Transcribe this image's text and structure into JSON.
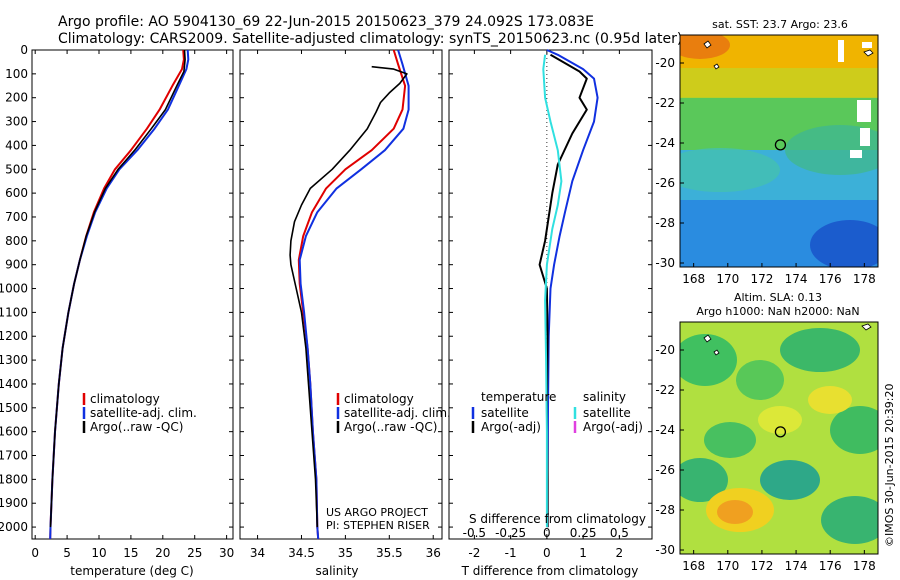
{
  "header": {
    "line1": "Argo profile: AO 5904130_69 22-Jun-2015 20150623_379 24.092S 173.083E",
    "line2": "Climatology: CARS2009. Satellite-adjusted climatology: synTS_20150623.nc (0.95d later)"
  },
  "side_caption": "©IMOS 30-Jun-2015 20:39:20",
  "colors": {
    "climatology": "#e00000",
    "satellite": "#1030e0",
    "argo": "#000000",
    "salinity_satellite": "#30e0e0",
    "salinity_argo": "#e040e0"
  },
  "chart_data": [
    {
      "id": "temperature",
      "type": "line",
      "xlabel": "temperature (deg C)",
      "xlim": [
        -0.5,
        31
      ],
      "xticks": [
        "0",
        "5",
        "10",
        "15",
        "20",
        "25",
        "30"
      ],
      "xtick_values": [
        0,
        5,
        10,
        15,
        20,
        25,
        30
      ],
      "ylim": [
        2050,
        0
      ],
      "yticks": [
        "0",
        "100",
        "200",
        "300",
        "400",
        "500",
        "600",
        "700",
        "800",
        "900",
        "1000",
        "1100",
        "1200",
        "1300",
        "1400",
        "1500",
        "1600",
        "1700",
        "1800",
        "1900",
        "2000"
      ],
      "ytick_values": [
        0,
        100,
        200,
        300,
        400,
        500,
        600,
        700,
        800,
        900,
        1000,
        1100,
        1200,
        1300,
        1400,
        1500,
        1600,
        1700,
        1800,
        1900,
        2000
      ],
      "legend": [
        "climatology",
        "satellite-adj. clim.",
        "Argo(..raw -QC)"
      ],
      "series": [
        {
          "name": "climatology",
          "color": "#e00000",
          "points": [
            [
              23.2,
              0
            ],
            [
              23.3,
              40
            ],
            [
              23.0,
              80
            ],
            [
              21.5,
              150
            ],
            [
              19.5,
              250
            ],
            [
              17.5,
              330
            ],
            [
              15.0,
              420
            ],
            [
              12.5,
              500
            ],
            [
              10.8,
              580
            ],
            [
              9.2,
              680
            ],
            [
              8.0,
              780
            ],
            [
              7.0,
              880
            ],
            [
              6.1,
              980
            ],
            [
              5.2,
              1100
            ],
            [
              4.3,
              1250
            ],
            [
              3.7,
              1400
            ],
            [
              3.1,
              1600
            ],
            [
              2.7,
              1800
            ],
            [
              2.4,
              2000
            ],
            [
              2.35,
              2050
            ]
          ]
        },
        {
          "name": "satellite-adj. clim.",
          "color": "#1030e0",
          "points": [
            [
              23.9,
              0
            ],
            [
              24.0,
              40
            ],
            [
              23.7,
              80
            ],
            [
              22.5,
              150
            ],
            [
              20.8,
              250
            ],
            [
              18.7,
              330
            ],
            [
              16.0,
              420
            ],
            [
              13.2,
              500
            ],
            [
              11.2,
              580
            ],
            [
              9.4,
              680
            ],
            [
              8.1,
              780
            ],
            [
              7.0,
              880
            ],
            [
              6.1,
              980
            ],
            [
              5.2,
              1100
            ],
            [
              4.3,
              1250
            ],
            [
              3.7,
              1400
            ],
            [
              3.1,
              1600
            ],
            [
              2.7,
              1800
            ],
            [
              2.4,
              2000
            ],
            [
              2.35,
              2050
            ]
          ]
        },
        {
          "name": "Argo(..raw -QC)",
          "color": "#000000",
          "points": [
            [
              23.4,
              0
            ],
            [
              23.5,
              40
            ],
            [
              23.3,
              90
            ],
            [
              22.2,
              150
            ],
            [
              20.4,
              250
            ],
            [
              18.2,
              330
            ],
            [
              15.6,
              420
            ],
            [
              13.0,
              500
            ],
            [
              11.0,
              580
            ],
            [
              9.3,
              680
            ],
            [
              8.0,
              780
            ],
            [
              7.0,
              880
            ],
            [
              6.1,
              980
            ],
            [
              5.2,
              1100
            ],
            [
              4.3,
              1250
            ],
            [
              3.7,
              1400
            ],
            [
              3.1,
              1600
            ],
            [
              2.7,
              1800
            ],
            [
              2.4,
              2000
            ]
          ]
        }
      ]
    },
    {
      "id": "salinity",
      "type": "line",
      "xlabel": "salinity",
      "xlim": [
        33.8,
        36.1
      ],
      "xticks": [
        "34",
        "34.5",
        "35",
        "35.5",
        "36"
      ],
      "xtick_values": [
        34,
        34.5,
        35,
        35.5,
        36
      ],
      "ylim": [
        2050,
        0
      ],
      "legend": [
        "climatology",
        "satellite-adj. clim.",
        "Argo(..raw -QC)"
      ],
      "annotations": [
        "US ARGO PROJECT",
        "PI: STEPHEN RISER"
      ],
      "series": [
        {
          "name": "climatology",
          "color": "#e00000",
          "points": [
            [
              35.55,
              0
            ],
            [
              35.6,
              60
            ],
            [
              35.68,
              150
            ],
            [
              35.65,
              250
            ],
            [
              35.55,
              330
            ],
            [
              35.3,
              420
            ],
            [
              35.0,
              500
            ],
            [
              34.78,
              580
            ],
            [
              34.62,
              680
            ],
            [
              34.52,
              780
            ],
            [
              34.47,
              880
            ],
            [
              34.48,
              980
            ],
            [
              34.52,
              1100
            ],
            [
              34.57,
              1250
            ],
            [
              34.6,
              1400
            ],
            [
              34.63,
              1600
            ],
            [
              34.67,
              1800
            ],
            [
              34.68,
              2000
            ],
            [
              34.69,
              2050
            ]
          ]
        },
        {
          "name": "satellite-adj. clim.",
          "color": "#1030e0",
          "points": [
            [
              35.6,
              0
            ],
            [
              35.65,
              60
            ],
            [
              35.72,
              150
            ],
            [
              35.72,
              250
            ],
            [
              35.66,
              330
            ],
            [
              35.45,
              420
            ],
            [
              35.18,
              500
            ],
            [
              34.9,
              580
            ],
            [
              34.68,
              680
            ],
            [
              34.55,
              780
            ],
            [
              34.48,
              880
            ],
            [
              34.49,
              980
            ],
            [
              34.53,
              1100
            ],
            [
              34.57,
              1250
            ],
            [
              34.6,
              1400
            ],
            [
              34.63,
              1600
            ],
            [
              34.67,
              1800
            ],
            [
              34.68,
              2000
            ],
            [
              34.69,
              2050
            ]
          ]
        },
        {
          "name": "Argo(..raw -QC)",
          "color": "#000000",
          "points": [
            [
              35.3,
              70
            ],
            [
              35.55,
              80
            ],
            [
              35.7,
              100
            ],
            [
              35.62,
              140
            ],
            [
              35.5,
              180
            ],
            [
              35.4,
              220
            ],
            [
              35.35,
              260
            ],
            [
              35.25,
              330
            ],
            [
              35.05,
              420
            ],
            [
              34.85,
              500
            ],
            [
              34.6,
              580
            ],
            [
              34.5,
              650
            ],
            [
              34.42,
              720
            ],
            [
              34.38,
              800
            ],
            [
              34.37,
              860
            ],
            [
              34.38,
              900
            ],
            [
              34.44,
              1000
            ],
            [
              34.5,
              1100
            ],
            [
              34.55,
              1250
            ],
            [
              34.58,
              1400
            ],
            [
              34.62,
              1600
            ],
            [
              34.66,
              1800
            ],
            [
              34.68,
              2000
            ]
          ]
        }
      ]
    },
    {
      "id": "differences",
      "type": "line",
      "xlabel": "T difference from climatology",
      "xlim": [
        -2.7,
        2.9
      ],
      "xticks": [
        "-2",
        "-1",
        "0",
        "1",
        "2"
      ],
      "xtick_values": [
        -2,
        -1,
        0,
        1,
        2
      ],
      "top_axis_label": "S difference from climatology",
      "top_xticks": [
        "-0.5",
        "-0.25",
        "0",
        "0.25",
        "0.5"
      ],
      "ylim": [
        2050,
        0
      ],
      "zero_line": true,
      "legend_headers": [
        "temperature",
        "salinity"
      ],
      "legend": [
        "satellite",
        "Argo(-adj)",
        "satellite",
        "Argo(-adj)"
      ],
      "series": [
        {
          "name": "temperature satellite",
          "color": "#1030e0",
          "points": [
            [
              0.0,
              0
            ],
            [
              0.3,
              20
            ],
            [
              1.0,
              80
            ],
            [
              1.3,
              120
            ],
            [
              1.4,
              200
            ],
            [
              1.3,
              300
            ],
            [
              1.0,
              420
            ],
            [
              0.7,
              550
            ],
            [
              0.5,
              680
            ],
            [
              0.35,
              780
            ],
            [
              0.2,
              900
            ],
            [
              0.1,
              1000
            ],
            [
              0.05,
              1200
            ],
            [
              0.03,
              1500
            ],
            [
              0.02,
              1800
            ],
            [
              0.02,
              2000
            ]
          ]
        },
        {
          "name": "temperature Argo(-adj)",
          "color": "#000000",
          "points": [
            [
              0.1,
              20
            ],
            [
              0.9,
              90
            ],
            [
              1.1,
              120
            ],
            [
              0.9,
              200
            ],
            [
              1.1,
              250
            ],
            [
              0.7,
              350
            ],
            [
              0.3,
              480
            ],
            [
              0.15,
              600
            ],
            [
              -0.05,
              800
            ],
            [
              -0.2,
              900
            ],
            [
              0.0,
              1000
            ],
            [
              0.02,
              1200
            ],
            [
              0.0,
              1500
            ],
            [
              0.02,
              1800
            ],
            [
              0.02,
              2000
            ]
          ]
        },
        {
          "name": "salinity satellite",
          "color": "#30e0e0",
          "points": [
            [
              -0.05,
              20
            ],
            [
              -0.1,
              80
            ],
            [
              -0.05,
              200
            ],
            [
              0.1,
              300
            ],
            [
              0.3,
              420
            ],
            [
              0.4,
              550
            ],
            [
              0.3,
              650
            ],
            [
              0.15,
              750
            ],
            [
              0.0,
              900
            ],
            [
              -0.05,
              1050
            ],
            [
              -0.02,
              1300
            ],
            [
              0.0,
              1600
            ],
            [
              0.0,
              1800
            ],
            [
              0.0,
              2000
            ]
          ]
        }
      ]
    }
  ],
  "maps": [
    {
      "id": "sst",
      "title": "sat. SST: 23.7 Argo: 23.6",
      "colormap": "jet",
      "xticks": [
        "168",
        "170",
        "172",
        "174",
        "176",
        "178"
      ],
      "yticks": [
        "-20",
        "-22",
        "-24",
        "-26",
        "-28",
        "-30"
      ],
      "marker": [
        173.083,
        -24.092
      ]
    },
    {
      "id": "sla",
      "title_line1": "Altim. SLA: 0.13",
      "title_line2": "Argo h1000: NaN h2000: NaN",
      "colormap": "jet",
      "xticks": [
        "168",
        "170",
        "172",
        "174",
        "176",
        "178"
      ],
      "yticks": [
        "-20",
        "-22",
        "-24",
        "-26",
        "-28",
        "-30"
      ],
      "marker": [
        173.083,
        -24.092
      ]
    }
  ]
}
